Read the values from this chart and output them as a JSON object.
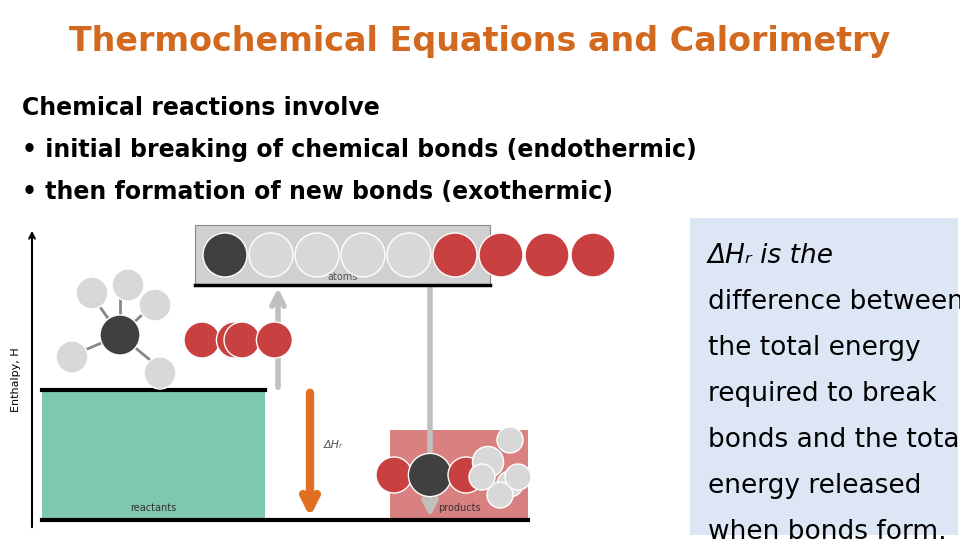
{
  "title": "Thermochemical Equations and Calorimetry",
  "title_color": "#D2691E",
  "title_fontsize": 24,
  "bg_color": "#ffffff",
  "line1": "Chemical reactions involve",
  "bullet1": "• initial breaking of chemical bonds (endothermic)",
  "bullet2": "• then formation of new bonds (exothermic)",
  "text_fontsize": 17,
  "box_text_lines": [
    "ΔHᵣ is the",
    "difference between",
    "the total energy",
    "required to break",
    "bonds and the total",
    "energy released",
    "when bonds form."
  ],
  "box_bg": "#dce6f5",
  "reactant_box_color": "#7ec8b0",
  "product_box_color": "#d98080",
  "atoms_box_color": "#d0d0d0",
  "arrow_gray": "#c0c0c0",
  "arrow_orange": "#E07020",
  "enthalpy_label": "Enthalpy, H",
  "atoms_label": "atoms",
  "reactants_label": "reactants",
  "products_label": "products",
  "delta_hr_label": "ΔHᵣ"
}
